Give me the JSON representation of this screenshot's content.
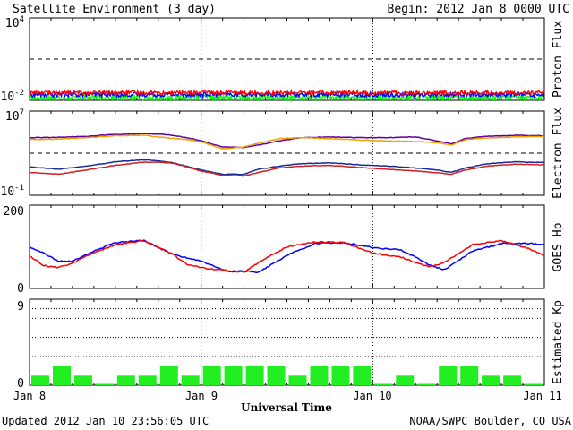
{
  "header": {
    "title": "Satellite Environment (3 day)",
    "begin": "Begin:  2012 Jan 8 0000 UTC"
  },
  "footer": {
    "updated": "Updated 2012 Jan 10 23:56:05 UTC",
    "credit": "NOAA/SWPC Boulder, CO USA"
  },
  "colors": {
    "red": "#ff0000",
    "blue": "#0000ff",
    "green": "#00ff00",
    "dark_blue": "#1a2a9a",
    "dark_red": "#d42020",
    "orange": "#f0a000",
    "purple": "#6000a0",
    "kp_green": "#22ee22"
  },
  "chart_data": [
    {
      "type": "line",
      "title": "",
      "xlabel": "Universal Time",
      "ylabel": "Proton Flux",
      "ytick_labels": [
        "10",
        "10"
      ],
      "ytick_exponents": [
        "4",
        "-2"
      ],
      "yscale": "log",
      "ylim": [
        0.01,
        10000
      ],
      "xlim": [
        0,
        72
      ],
      "xunit": "hours from 2012 Jan 8 0000 UTC",
      "reference_lines": [
        {
          "value": 10,
          "style": "dashed"
        }
      ],
      "series": [
        {
          "color": "#ff0000",
          "baseline": 0.036,
          "jitter": 0.14
        },
        {
          "color": "#0000ff",
          "baseline": 0.026,
          "jitter": 0.16
        },
        {
          "color": "#00ff00",
          "baseline": 0.016,
          "jitter": 0.18
        }
      ]
    },
    {
      "type": "line",
      "title": "",
      "ylabel": "Electron Flux",
      "ytick_labels": [
        "10",
        "10"
      ],
      "ytick_exponents": [
        "7",
        "-1"
      ],
      "yscale": "log",
      "ylim": [
        0.1,
        10000000
      ],
      "xlim": [
        0,
        72
      ],
      "reference_lines": [
        {
          "value": 1000,
          "style": "dashed"
        }
      ],
      "series": [
        {
          "color": "#6000a0",
          "x": [
            0,
            4,
            8,
            12,
            16,
            18,
            20,
            22,
            24,
            27,
            30,
            32,
            35,
            38,
            42,
            46,
            50,
            54,
            57,
            59,
            61,
            64,
            68,
            72
          ],
          "y": [
            30000,
            33000,
            40000,
            60000,
            70000,
            65000,
            50000,
            30000,
            15000,
            4000,
            3500,
            6000,
            15000,
            30000,
            35000,
            30000,
            30000,
            35000,
            15000,
            8000,
            25000,
            40000,
            50000,
            45000
          ]
        },
        {
          "color": "#f0a000",
          "x": [
            0,
            4,
            8,
            12,
            16,
            18,
            20,
            22,
            24,
            27,
            30,
            32,
            35,
            38,
            42,
            46,
            50,
            54,
            57,
            59,
            61,
            64,
            68,
            72
          ],
          "y": [
            20000,
            22000,
            30000,
            45000,
            50000,
            35000,
            25000,
            20000,
            12000,
            2500,
            4000,
            9000,
            25000,
            30000,
            25000,
            18000,
            15000,
            13000,
            10000,
            6000,
            20000,
            28000,
            35000,
            38000
          ]
        },
        {
          "color": "#1a2a9a",
          "x": [
            0,
            4,
            8,
            12,
            16,
            18,
            20,
            22,
            24,
            27,
            30,
            32,
            35,
            38,
            42,
            46,
            50,
            54,
            57,
            59,
            61,
            64,
            68,
            72
          ],
          "y": [
            50,
            30,
            60,
            150,
            240,
            180,
            120,
            60,
            25,
            10,
            10,
            30,
            60,
            100,
            120,
            80,
            60,
            40,
            25,
            15,
            40,
            100,
            150,
            130
          ]
        },
        {
          "color": "#d42020",
          "x": [
            0,
            4,
            8,
            12,
            16,
            18,
            20,
            22,
            24,
            27,
            30,
            32,
            35,
            38,
            42,
            46,
            50,
            54,
            57,
            59,
            61,
            64,
            68,
            72
          ],
          "y": [
            15,
            10,
            25,
            70,
            140,
            140,
            110,
            50,
            20,
            8,
            7,
            15,
            40,
            60,
            70,
            45,
            30,
            20,
            14,
            10,
            25,
            60,
            90,
            80
          ]
        }
      ]
    },
    {
      "type": "line",
      "title": "",
      "ylabel": "GOES Hp",
      "ytick_labels": [
        "200",
        "0"
      ],
      "yscale": "linear",
      "ylim": [
        0,
        200
      ],
      "xlim": [
        0,
        72
      ],
      "series": [
        {
          "color": "#0000ff",
          "x": [
            0,
            2,
            4,
            6,
            8,
            12,
            16,
            20,
            24,
            28,
            30,
            32,
            36,
            40,
            44,
            48,
            52,
            54,
            56,
            58,
            62,
            66,
            70,
            72
          ],
          "y": [
            100,
            85,
            65,
            65,
            82,
            110,
            115,
            82,
            65,
            40,
            42,
            38,
            80,
            108,
            110,
            98,
            92,
            75,
            55,
            45,
            90,
            108,
            108,
            105
          ]
        },
        {
          "color": "#ff0000",
          "x": [
            0,
            2,
            4,
            6,
            8,
            12,
            16,
            20,
            22,
            24,
            28,
            30,
            32,
            36,
            40,
            44,
            48,
            52,
            54,
            56,
            58,
            62,
            66,
            70,
            72
          ],
          "y": [
            78,
            55,
            50,
            60,
            78,
            105,
            115,
            82,
            58,
            50,
            42,
            40,
            62,
            100,
            112,
            110,
            85,
            75,
            62,
            52,
            62,
            105,
            115,
            95,
            78
          ]
        }
      ]
    },
    {
      "type": "bar",
      "title": "",
      "ylabel": "Estimated Kp",
      "ytick_labels": [
        "9",
        "0"
      ],
      "ylim": [
        0,
        9
      ],
      "xlim": [
        0,
        72
      ],
      "bar_hours": 3,
      "grid_lines": [
        3,
        5,
        7,
        8
      ],
      "color": "#22ee22",
      "values": [
        1,
        2,
        1,
        0,
        1,
        1,
        2,
        1,
        2,
        2,
        2,
        2,
        1,
        2,
        2,
        2,
        0,
        1,
        0,
        2,
        2,
        1,
        1,
        0
      ]
    }
  ],
  "x_axis": {
    "label": "Universal Time",
    "ticks": [
      {
        "hour": 0,
        "label": "Jan 8"
      },
      {
        "hour": 24,
        "label": "Jan 9"
      },
      {
        "hour": 48,
        "label": "Jan 10"
      },
      {
        "hour": 72,
        "label": "Jan 11"
      }
    ]
  }
}
